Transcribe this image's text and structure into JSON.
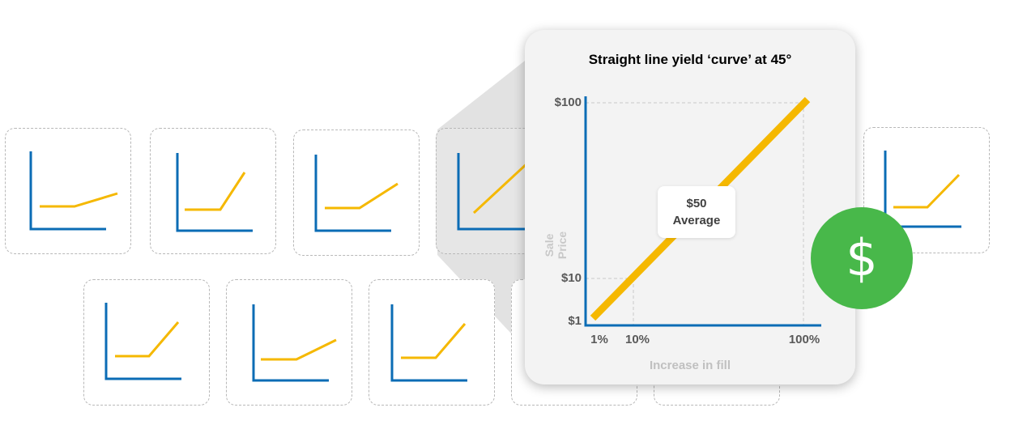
{
  "zoom_card": {
    "title": "Straight line yield ‘curve’ at 45°",
    "average_value": "$50",
    "average_label": "Average"
  },
  "chart_data": {
    "type": "line",
    "title": "Straight line yield ‘curve’ at 45°",
    "xlabel": "Increase in fill",
    "ylabel": "Sale Price",
    "x_scale": "log",
    "y_scale": "log",
    "x_ticks": [
      "1%",
      "10%",
      "100%"
    ],
    "y_ticks": [
      "$100",
      "$10",
      "$1"
    ],
    "xlim": [
      1,
      100
    ],
    "ylim": [
      1,
      100
    ],
    "series": [
      {
        "x": [
          1,
          100
        ],
        "y": [
          1,
          100
        ],
        "color": "#f5b800"
      }
    ],
    "guide_lines": true,
    "annotation": "$50 Average"
  },
  "colors": {
    "axis": "#0b6cb5",
    "curve": "#f5b800",
    "badge": "#48b84a",
    "tile_border": "#b8b8b8"
  },
  "icons": {
    "badge": "dollar-icon"
  },
  "badge": {
    "symbol": "$"
  }
}
